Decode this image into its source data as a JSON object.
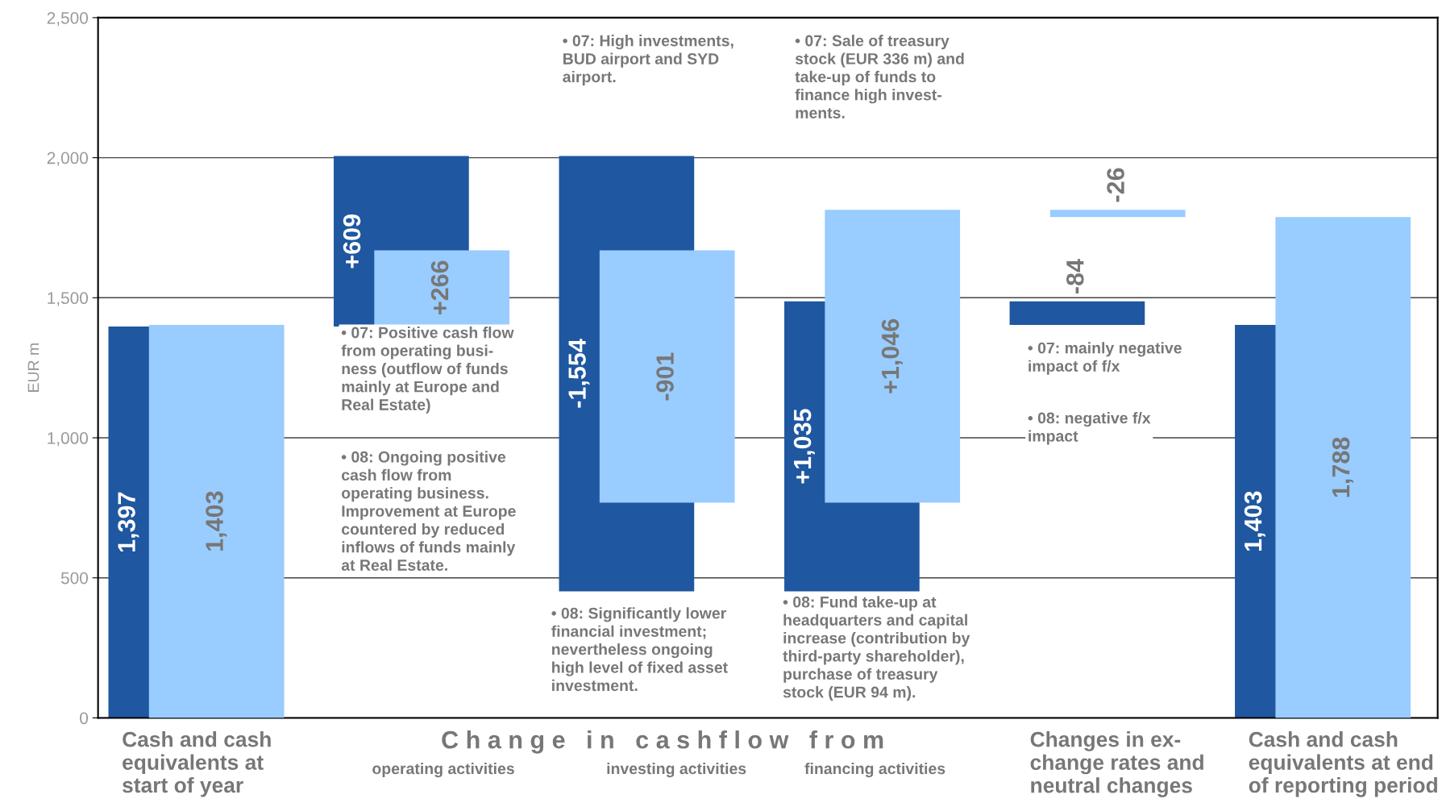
{
  "chart_data": {
    "type": "bar",
    "ylabel": "EUR m",
    "categories": [
      "Cash and cash\nequivalents at\nstart of year",
      "operating activities",
      "investing activities",
      "financing activities",
      "Changes in ex-\nchange rates and\nneutral changes",
      "Cash and cash\nequivalents at end\nof reporting period"
    ],
    "series": [
      {
        "color": "#1f57a0",
        "base": [
          0,
          1397,
          2006,
          452,
          1487,
          0
        ],
        "values": [
          1397,
          609,
          -1554,
          1035,
          -84,
          1403
        ],
        "value_labels": [
          "1,397",
          "+609",
          "-1,554",
          "+1,035",
          "-84",
          "1,403"
        ]
      },
      {
        "color": "#99ccff",
        "base": [
          0,
          1403,
          1669,
          768,
          1814,
          0
        ],
        "values": [
          1403,
          266,
          -901,
          1046,
          -26,
          1788
        ],
        "value_labels": [
          "1,403",
          "+266",
          "-901",
          "+1,046",
          "-26",
          "1,788"
        ]
      }
    ],
    "ylim": [
      0,
      2500
    ],
    "yticks": [
      0,
      {
        "value": 500,
        "label": "500"
      },
      {
        "value": 1000,
        "label": "1,000"
      },
      {
        "value": 1500,
        "label": "1,500"
      },
      {
        "value": 2000,
        "label": "2,000"
      },
      {
        "value": 2500,
        "label": "2,500"
      }
    ],
    "grid": "y",
    "legend": false,
    "annotations": [
      "C h a n g e   i n   c a s h f l o w   f r o m",
      "• 07: Positive cash flow\nfrom operating busi-\nness (outflow of funds\nmainly at Europe and\nReal Estate)",
      "• 08: Ongoing positive\ncash flow from\noperating business.\nImprovement at Europe\ncountered by reduced\ninflows of funds mainly\nat Real Estate.",
      "• 07: High investments,\nBUD airport and SYD\nairport.",
      "• 08: Significantly lower\nfinancial investment;\nnevertheless ongoing\nhigh level of fixed asset\ninvestment.",
      "• 07: Sale of treasury\nstock (EUR 336 m) and\ntake-up of funds to\nfinance high invest-\nments.",
      "• 08: Fund take-up at\nheadquarters and capital\nincrease (contribution by\nthird-party shareholder),\npurchase of treasury\nstock (EUR 94 m).",
      "• 07: mainly negative\nimpact of f/x",
      "• 08: negative f/x\nimpact"
    ]
  }
}
